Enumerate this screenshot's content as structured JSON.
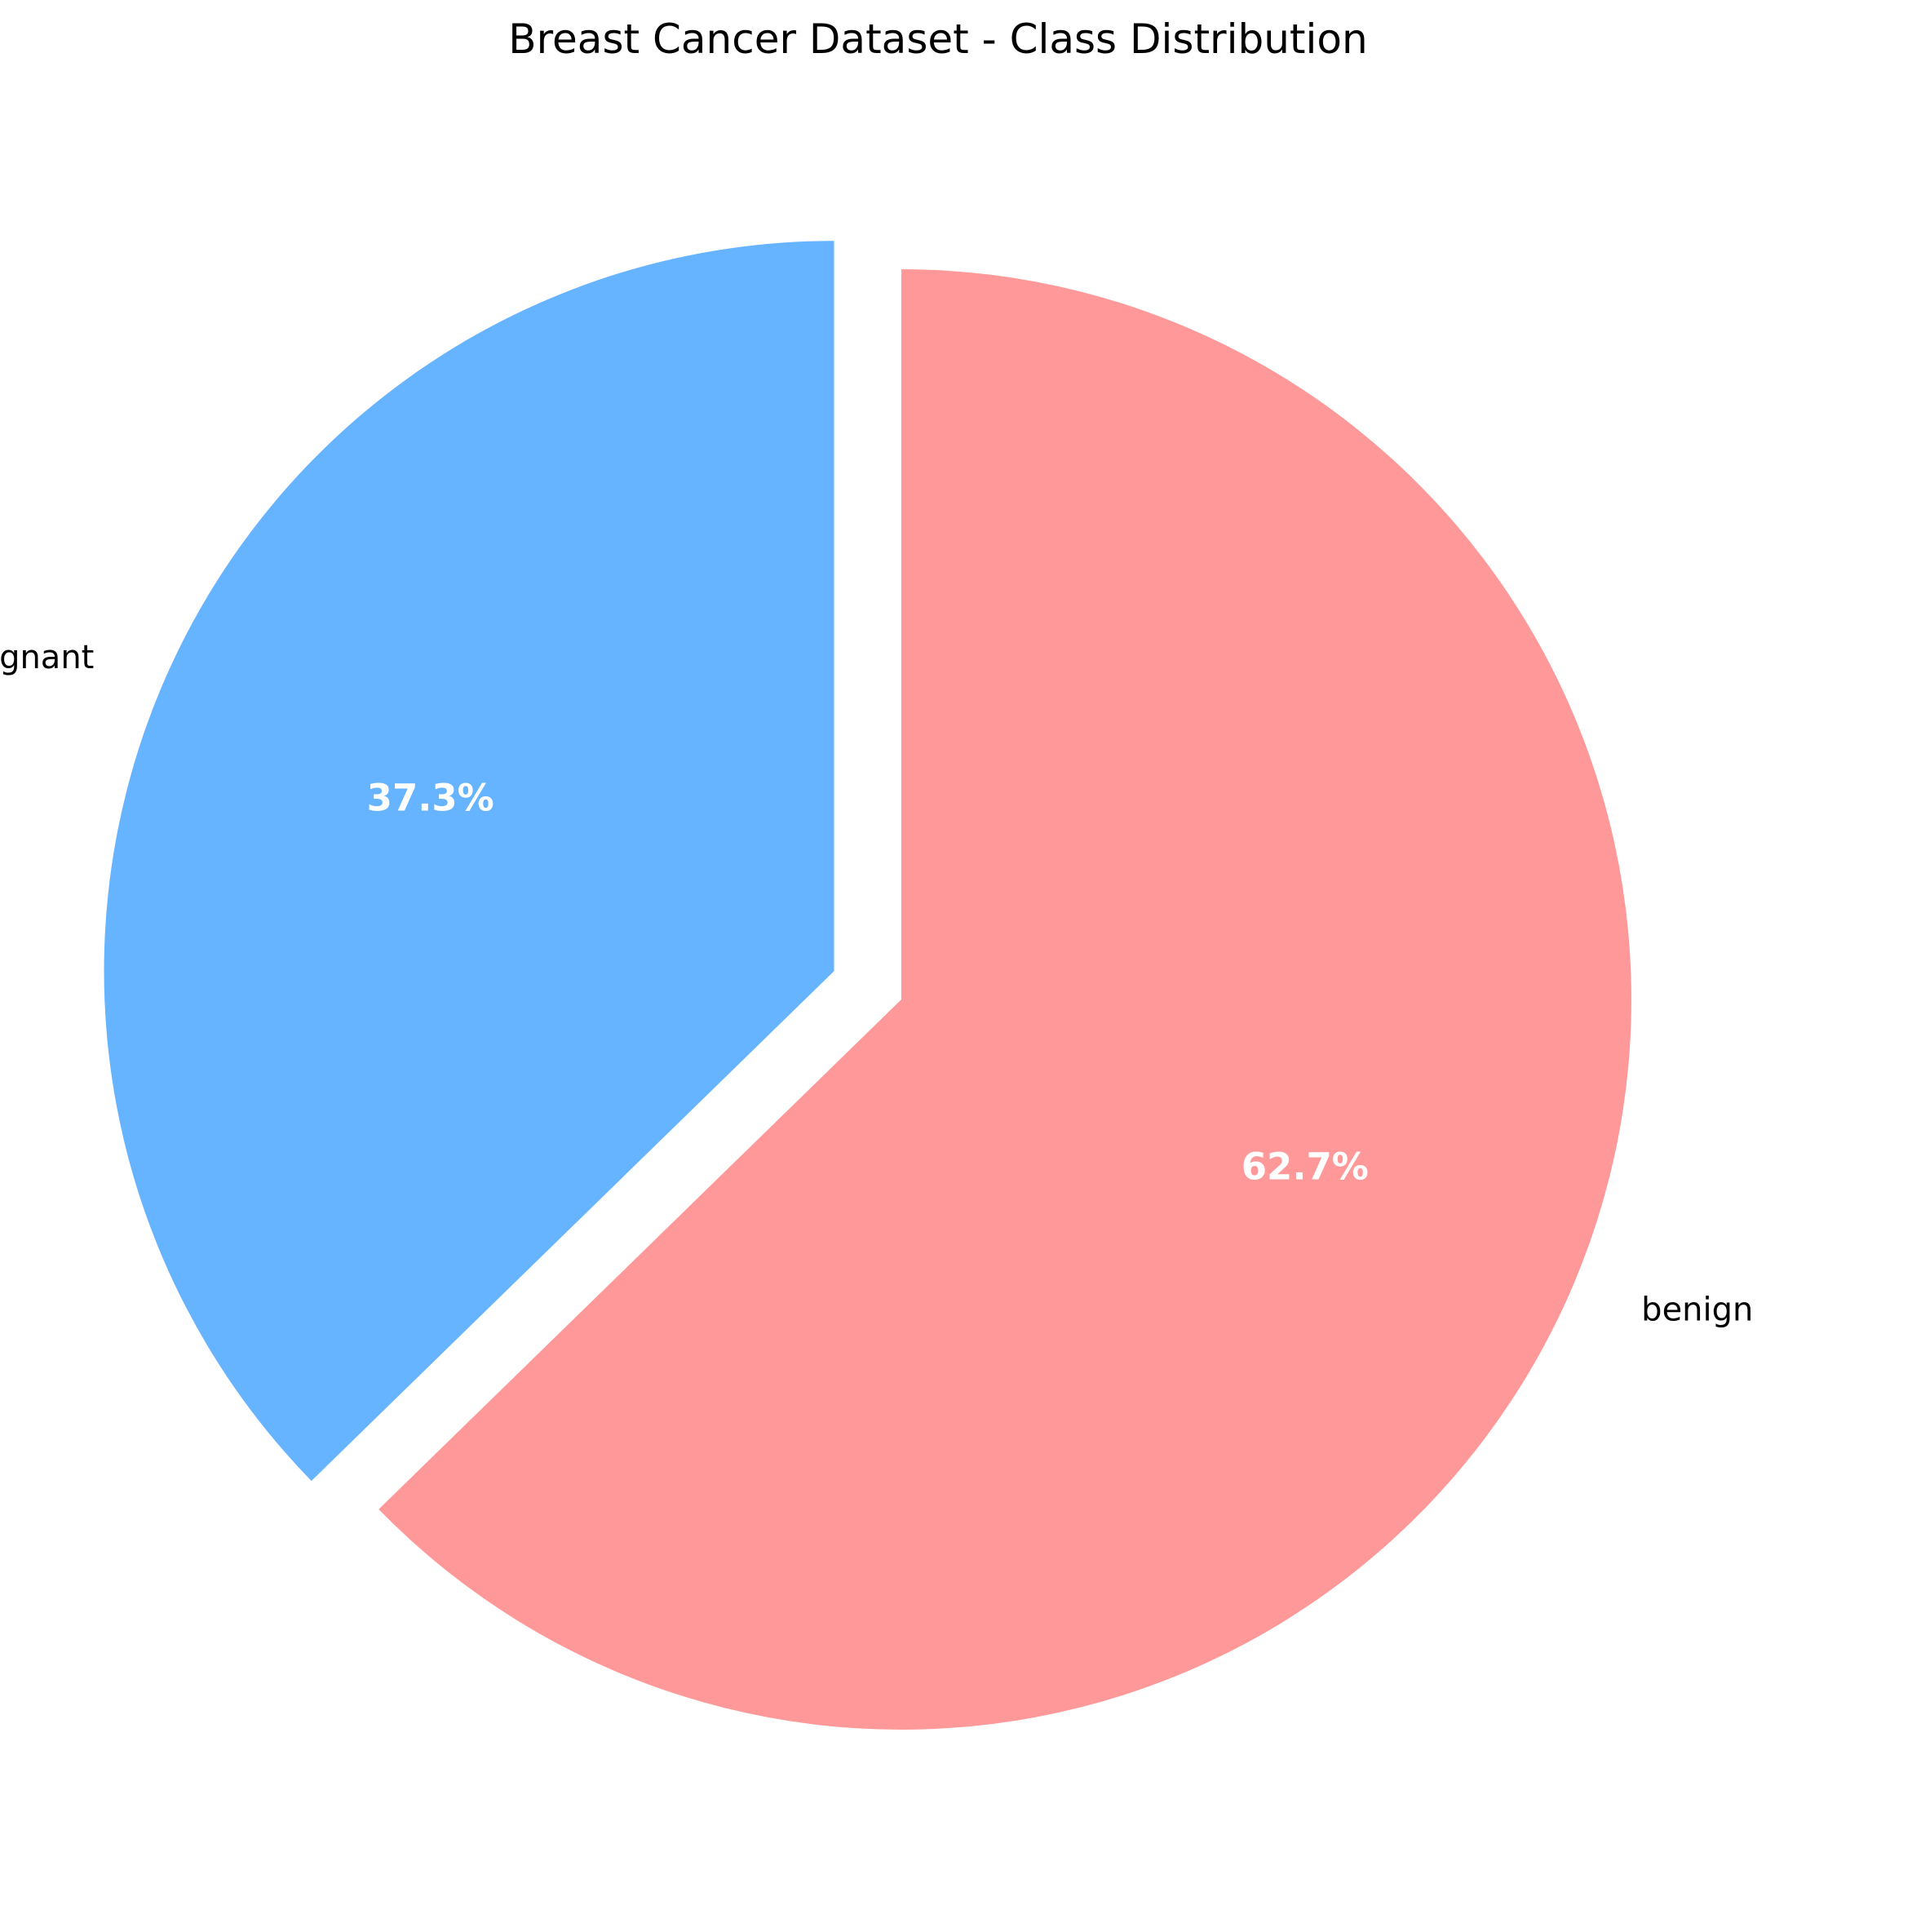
{
  "chart_data": {
    "type": "pie",
    "title": "Breast Cancer Dataset - Class Distribution",
    "start_angle_deg": 90,
    "direction": "clockwise",
    "slices": [
      {
        "label": "benign",
        "value": 62.7,
        "pct_label": "62.7%",
        "color": "#ff9999",
        "exploded": false
      },
      {
        "label": "malignant",
        "value": 37.3,
        "pct_label": "37.3%",
        "color": "#66b3ff",
        "exploded": true
      }
    ]
  }
}
